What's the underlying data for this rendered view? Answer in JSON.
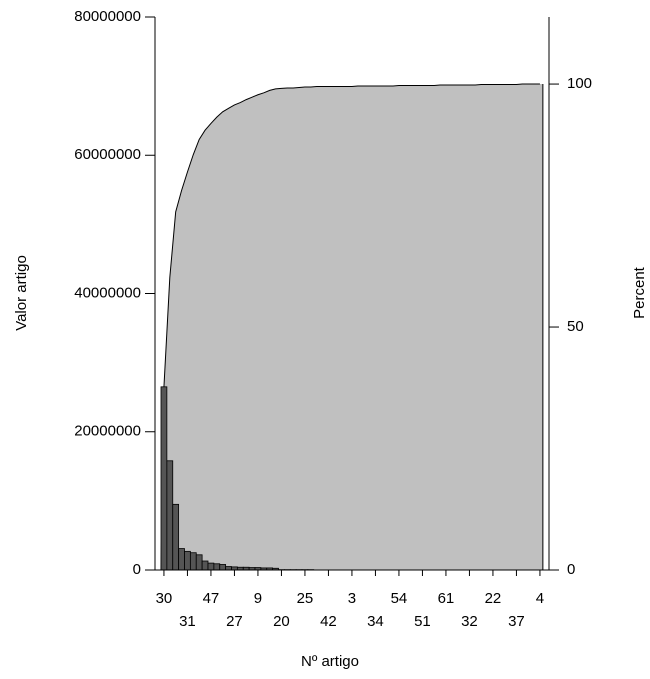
{
  "chart_data": {
    "type": "pareto",
    "x_label": "Nº artigo",
    "y_label": "Valor artigo",
    "y2_label": "Percent",
    "categories": [
      "30",
      null,
      null,
      null,
      "31",
      null,
      null,
      null,
      "47",
      null,
      null,
      null,
      "27",
      null,
      null,
      null,
      "9",
      null,
      null,
      null,
      "20",
      null,
      null,
      null,
      "25",
      null,
      null,
      null,
      "42",
      null,
      null,
      null,
      "3",
      null,
      null,
      null,
      "34",
      null,
      null,
      null,
      "54",
      null,
      null,
      null,
      "51",
      null,
      null,
      null,
      "61",
      null,
      null,
      null,
      "32",
      null,
      null,
      null,
      "22",
      null,
      null,
      null,
      "37",
      null,
      null,
      null,
      "4"
    ],
    "series": [
      {
        "color": "#555555",
        "values": [
          26500000,
          15800000,
          9500000,
          3100000,
          2700000,
          2500000,
          2200000,
          1300000,
          1000000,
          900000,
          800000,
          500000,
          450000,
          400000,
          400000,
          350000,
          350000,
          300000,
          300000,
          250000,
          50000,
          50000,
          50000,
          50000,
          50000,
          50000,
          10000,
          10000,
          10000,
          10000,
          10000,
          10000,
          10000,
          10000,
          10000,
          10000,
          10000,
          10000,
          10000,
          10000,
          10000,
          10000,
          10000,
          10000,
          10000,
          10000,
          10000,
          10000,
          10000,
          10000,
          10000,
          10000,
          10000,
          10000,
          10000,
          10000,
          10000,
          10000,
          10000,
          10000,
          10000,
          10000,
          10000,
          10000,
          10000
        ]
      },
      {
        "color": "#c0c0c0",
        "axis": "y2",
        "values": [
          37.7,
          60.2,
          73.7,
          78.1,
          81.9,
          85.5,
          88.6,
          90.5,
          91.9,
          93.2,
          94.3,
          95.0,
          95.7,
          96.2,
          96.8,
          97.3,
          97.8,
          98.2,
          98.7,
          99.0,
          99.1,
          99.2,
          99.2,
          99.3,
          99.4,
          99.4,
          99.5,
          99.5,
          99.5,
          99.5,
          99.5,
          99.5,
          99.5,
          99.6,
          99.6,
          99.6,
          99.6,
          99.6,
          99.6,
          99.6,
          99.7,
          99.7,
          99.7,
          99.7,
          99.7,
          99.7,
          99.7,
          99.8,
          99.8,
          99.8,
          99.8,
          99.8,
          99.8,
          99.8,
          99.9,
          99.9,
          99.9,
          99.9,
          99.9,
          99.9,
          99.9,
          100,
          100,
          100,
          100
        ]
      }
    ],
    "ylim": [
      0,
      80000000
    ],
    "yticks": [
      0,
      20000000,
      40000000,
      60000000,
      80000000
    ],
    "y2lim": [
      0,
      113.8
    ],
    "y2ticks": [
      0,
      50,
      100
    ]
  }
}
